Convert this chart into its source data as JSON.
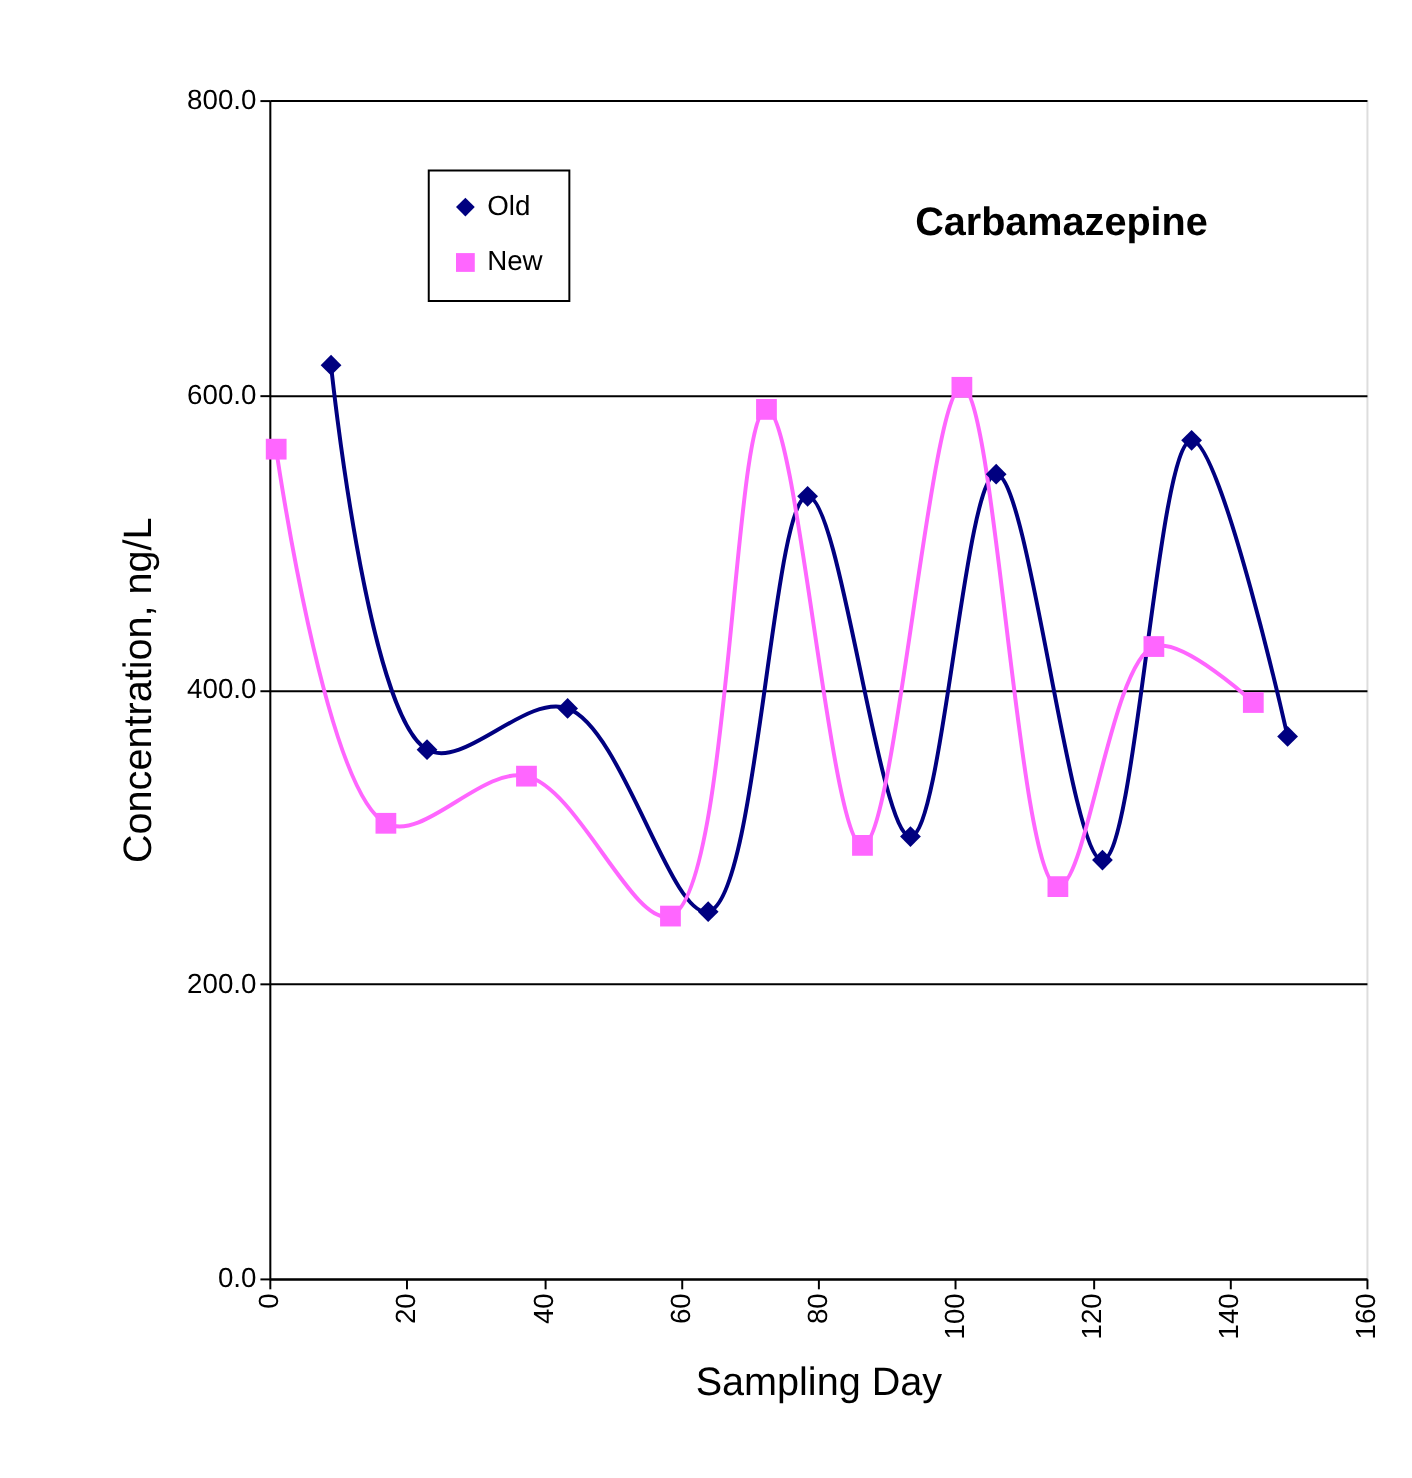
{
  "chart_data": {
    "type": "line",
    "title": "Carbamazepine",
    "xlabel": "Sampling Day",
    "ylabel": "Concentration, ng/L",
    "xlim": [
      0,
      160
    ],
    "xticks": [
      0,
      20,
      40,
      60,
      80,
      100,
      120,
      140,
      160
    ],
    "ylim": [
      0,
      800
    ],
    "yticks": [
      {
        "value": 0,
        "label": "0.0"
      },
      {
        "value": 200,
        "label": "200.0"
      },
      {
        "value": 400,
        "label": "400.0"
      },
      {
        "value": 600,
        "label": "600.0"
      },
      {
        "value": 800,
        "label": "800.0"
      }
    ],
    "grid": "y",
    "legend": "top left",
    "line_style": "solid",
    "series": [
      {
        "name": "Old",
        "color": "#000080",
        "marker": "diamond",
        "x": [
          9,
          23,
          43.5,
          64,
          78.5,
          93.5,
          106,
          121.5,
          134.5,
          148.5
        ],
        "values": [
          620,
          359,
          387,
          249,
          531,
          300,
          546,
          284,
          569,
          368
        ]
      },
      {
        "name": "New",
        "color": "#ff66ff",
        "marker": "square",
        "x": [
          1,
          17,
          37.5,
          58.5,
          72.5,
          86.5,
          101,
          115,
          129,
          143.5
        ],
        "values": [
          563,
          309,
          341,
          246,
          590,
          294,
          605,
          266,
          429,
          391
        ]
      }
    ]
  }
}
